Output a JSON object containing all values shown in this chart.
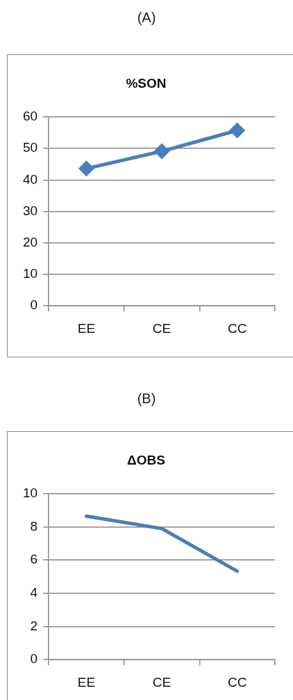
{
  "chart_data": [
    {
      "type": "line",
      "title": "%SON",
      "annotations": [
        "(A)"
      ],
      "categories": [
        "EE",
        "CE",
        "CC"
      ],
      "series": [
        {
          "color": "#4a7ebb",
          "values": [
            43.6,
            49.1,
            55.7
          ]
        }
      ],
      "ylim": [
        0,
        60
      ],
      "yticks": [
        0,
        10,
        20,
        30,
        40,
        50,
        60
      ],
      "grid": "y",
      "legend": false,
      "marker": "diamond",
      "line_style": "solid"
    },
    {
      "type": "line",
      "title": "ΔOBS",
      "annotations": [
        "(B)"
      ],
      "categories": [
        "EE",
        "CE",
        "CC"
      ],
      "series": [
        {
          "color": "#4a7ebb",
          "values": [
            8.65,
            7.9,
            5.33
          ]
        }
      ],
      "ylim": [
        0,
        10
      ],
      "yticks": [
        0,
        2,
        4,
        6,
        8,
        10
      ],
      "grid": "y",
      "legend": false,
      "marker": "none",
      "line_style": "solid"
    }
  ]
}
